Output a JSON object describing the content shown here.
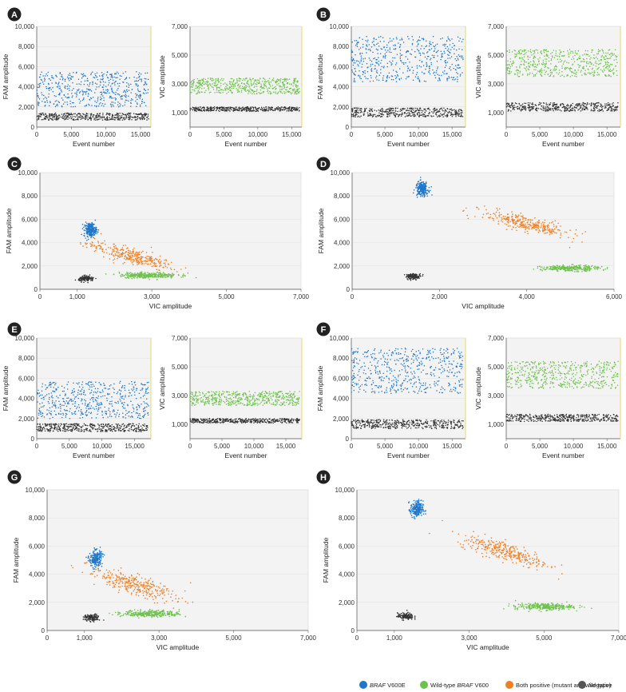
{
  "panels": [
    {
      "label": "A",
      "type": "event"
    },
    {
      "label": "B",
      "type": "event"
    },
    {
      "label": "C",
      "type": "2d"
    },
    {
      "label": "D",
      "type": "2d"
    },
    {
      "label": "E",
      "type": "event"
    },
    {
      "label": "F",
      "type": "event"
    },
    {
      "label": "G",
      "type": "2d"
    },
    {
      "label": "H",
      "type": "2d"
    }
  ],
  "legend": [
    {
      "italic": "BRAF",
      "text": " V600E",
      "color": "#1f77c9"
    },
    {
      "italic": "",
      "text": "Wild-type ",
      "italic2": "BRAF",
      "text2": " V600",
      "color": "#6cc24a"
    },
    {
      "italic": "",
      "text": "Both positive (mutant and wild-type)",
      "color": "#f07f22"
    },
    {
      "italic": "",
      "text": "Negative",
      "color": "#555555"
    }
  ],
  "colors": {
    "mutant": "#1f77c9",
    "wildtype": "#6cc24a",
    "both": "#f07f22",
    "negative": "#333333",
    "plot_bg": "#f3f3f3",
    "label_circle": "#222222"
  },
  "chart_data": [
    {
      "panel": "A",
      "type": "scatter",
      "xlabel": "Event number",
      "ylabel": "FAM amplitude",
      "xlim": [
        0,
        16500
      ],
      "ylim": [
        0,
        10000
      ],
      "xticks": [
        "0",
        "5,000",
        "10,000",
        "15,000"
      ],
      "yticks": [
        "0",
        "2,000",
        "4,000",
        "6,000",
        "8,000",
        "10,000"
      ],
      "clusters": [
        {
          "series": "mutant",
          "y_range": [
            2000,
            5500
          ]
        },
        {
          "series": "negative",
          "y_range": [
            700,
            1400
          ]
        }
      ]
    },
    {
      "panel": "A",
      "type": "scatter",
      "xlabel": "Event number",
      "ylabel": "VIC amplitude",
      "xlim": [
        0,
        16500
      ],
      "ylim": [
        0,
        7000
      ],
      "xticks": [
        "0",
        "5,000",
        "10,000",
        "15,000"
      ],
      "yticks": [
        "1,000",
        "3,000",
        "5,000",
        "7,000"
      ],
      "clusters": [
        {
          "series": "wildtype",
          "y_range": [
            2300,
            3400
          ]
        },
        {
          "series": "negative",
          "y_range": [
            1100,
            1400
          ]
        }
      ]
    },
    {
      "panel": "B",
      "type": "scatter",
      "xlabel": "Event number",
      "ylabel": "FAM amplitude",
      "xlim": [
        0,
        17000
      ],
      "ylim": [
        0,
        10000
      ],
      "xticks": [
        "0",
        "5,000",
        "10,000",
        "15,000"
      ],
      "yticks": [
        "0",
        "2,000",
        "4,000",
        "6,000",
        "8,000",
        "10,000"
      ],
      "clusters": [
        {
          "series": "mutant",
          "y_range": [
            4500,
            9000
          ]
        },
        {
          "series": "negative",
          "y_range": [
            1000,
            1900
          ]
        }
      ]
    },
    {
      "panel": "B",
      "type": "scatter",
      "xlabel": "Event number",
      "ylabel": "VIC amplitude",
      "xlim": [
        0,
        17000
      ],
      "ylim": [
        0,
        7000
      ],
      "xticks": [
        "0",
        "5,000",
        "10,000",
        "15,000"
      ],
      "yticks": [
        "1,000",
        "3,000",
        "5,000",
        "7,000"
      ],
      "clusters": [
        {
          "series": "wildtype",
          "y_range": [
            3500,
            5400
          ]
        },
        {
          "series": "negative",
          "y_range": [
            1100,
            1700
          ]
        }
      ]
    },
    {
      "panel": "C",
      "type": "scatter",
      "xlabel": "VIC amplitude",
      "ylabel": "FAM amplitude",
      "xlim": [
        0,
        7000
      ],
      "ylim": [
        0,
        10000
      ],
      "xticks": [
        "0",
        "1,000",
        "3,000",
        "5,000",
        "7,000"
      ],
      "yticks": [
        "0",
        "2,000",
        "4,000",
        "6,000",
        "8,000",
        "10,000"
      ],
      "clusters": [
        {
          "series": "mutant",
          "x": 1350,
          "y": 5100
        },
        {
          "series": "both",
          "x": 2400,
          "y": 2900
        },
        {
          "series": "wildtype",
          "x": 2900,
          "y": 1200
        },
        {
          "series": "negative",
          "x": 1250,
          "y": 900
        }
      ]
    },
    {
      "panel": "D",
      "type": "scatter",
      "xlabel": "VIC amplitude",
      "ylabel": "FAM amplitude",
      "xlim": [
        0,
        6000
      ],
      "ylim": [
        0,
        10000
      ],
      "xticks": [
        "0",
        "2,000",
        "4,000",
        "6,000"
      ],
      "yticks": [
        "0",
        "2,000",
        "4,000",
        "6,000",
        "8,000",
        "10,000"
      ],
      "clusters": [
        {
          "series": "mutant",
          "x": 1600,
          "y": 8600
        },
        {
          "series": "both",
          "x": 4000,
          "y": 5600
        },
        {
          "series": "wildtype",
          "x": 5000,
          "y": 1800
        },
        {
          "series": "negative",
          "x": 1400,
          "y": 1100
        }
      ]
    },
    {
      "panel": "E",
      "type": "scatter",
      "xlabel": "Event number",
      "ylabel": "FAM amplitude",
      "xlim": [
        0,
        17500
      ],
      "ylim": [
        0,
        10000
      ],
      "xticks": [
        "0",
        "5,000",
        "10,000",
        "15,000"
      ],
      "yticks": [
        "0",
        "2,000",
        "4,000",
        "6,000",
        "8,000",
        "10,000"
      ],
      "clusters": [
        {
          "series": "mutant",
          "y_range": [
            2000,
            5700
          ]
        },
        {
          "series": "negative",
          "y_range": [
            700,
            1500
          ]
        }
      ]
    },
    {
      "panel": "E",
      "type": "scatter",
      "xlabel": "Event number",
      "ylabel": "VIC amplitude",
      "xlim": [
        0,
        17500
      ],
      "ylim": [
        0,
        7000
      ],
      "xticks": [
        "0",
        "5,000",
        "10,000",
        "15,000"
      ],
      "yticks": [
        "1,000",
        "3,000",
        "5,000",
        "7,000"
      ],
      "clusters": [
        {
          "series": "wildtype",
          "y_range": [
            2300,
            3300
          ]
        },
        {
          "series": "negative",
          "y_range": [
            1100,
            1400
          ]
        }
      ]
    },
    {
      "panel": "F",
      "type": "scatter",
      "xlabel": "Event number",
      "ylabel": "FAM amplitude",
      "xlim": [
        0,
        17000
      ],
      "ylim": [
        0,
        10000
      ],
      "xticks": [
        "0",
        "5,000",
        "10,000",
        "15,000"
      ],
      "yticks": [
        "0",
        "2,000",
        "4,000",
        "6,000",
        "8,000",
        "10,000"
      ],
      "clusters": [
        {
          "series": "mutant",
          "y_range": [
            4500,
            9000
          ]
        },
        {
          "series": "negative",
          "y_range": [
            1000,
            1900
          ]
        }
      ]
    },
    {
      "panel": "F",
      "type": "scatter",
      "xlabel": "Event number",
      "ylabel": "VIC amplitude",
      "xlim": [
        0,
        17000
      ],
      "ylim": [
        0,
        7000
      ],
      "xticks": [
        "0",
        "5,000",
        "10,000",
        "15,000"
      ],
      "yticks": [
        "1,000",
        "3,000",
        "5,000",
        "7,000"
      ],
      "clusters": [
        {
          "series": "wildtype",
          "y_range": [
            3500,
            5400
          ]
        },
        {
          "series": "negative",
          "y_range": [
            1200,
            1700
          ]
        }
      ]
    },
    {
      "panel": "G",
      "type": "scatter",
      "xlabel": "VIC amplitude",
      "ylabel": "FAM amplitude",
      "xlim": [
        0,
        7000
      ],
      "ylim": [
        0,
        10000
      ],
      "xticks": [
        "0",
        "1,000",
        "3,000",
        "5,000",
        "7,000"
      ],
      "yticks": [
        "0",
        "2,000",
        "4,000",
        "6,000",
        "8,000",
        "10,000"
      ],
      "clusters": [
        {
          "series": "mutant",
          "x": 1300,
          "y": 5100
        },
        {
          "series": "both",
          "x": 2300,
          "y": 3300
        },
        {
          "series": "wildtype",
          "x": 2800,
          "y": 1200
        },
        {
          "series": "negative",
          "x": 1200,
          "y": 900
        }
      ]
    },
    {
      "panel": "H",
      "type": "scatter",
      "xlabel": "VIC amplitude",
      "ylabel": "FAM amplitude",
      "xlim": [
        0,
        7000
      ],
      "ylim": [
        0,
        10000
      ],
      "xticks": [
        "0",
        "1,000",
        "3,000",
        "5,000",
        "7,000"
      ],
      "yticks": [
        "0",
        "2,000",
        "4,000",
        "6,000",
        "8,000",
        "10,000"
      ],
      "clusters": [
        {
          "series": "mutant",
          "x": 1600,
          "y": 8600
        },
        {
          "series": "both",
          "x": 4000,
          "y": 5600
        },
        {
          "series": "wildtype",
          "x": 5000,
          "y": 1700
        },
        {
          "series": "negative",
          "x": 1300,
          "y": 1000
        }
      ]
    }
  ]
}
